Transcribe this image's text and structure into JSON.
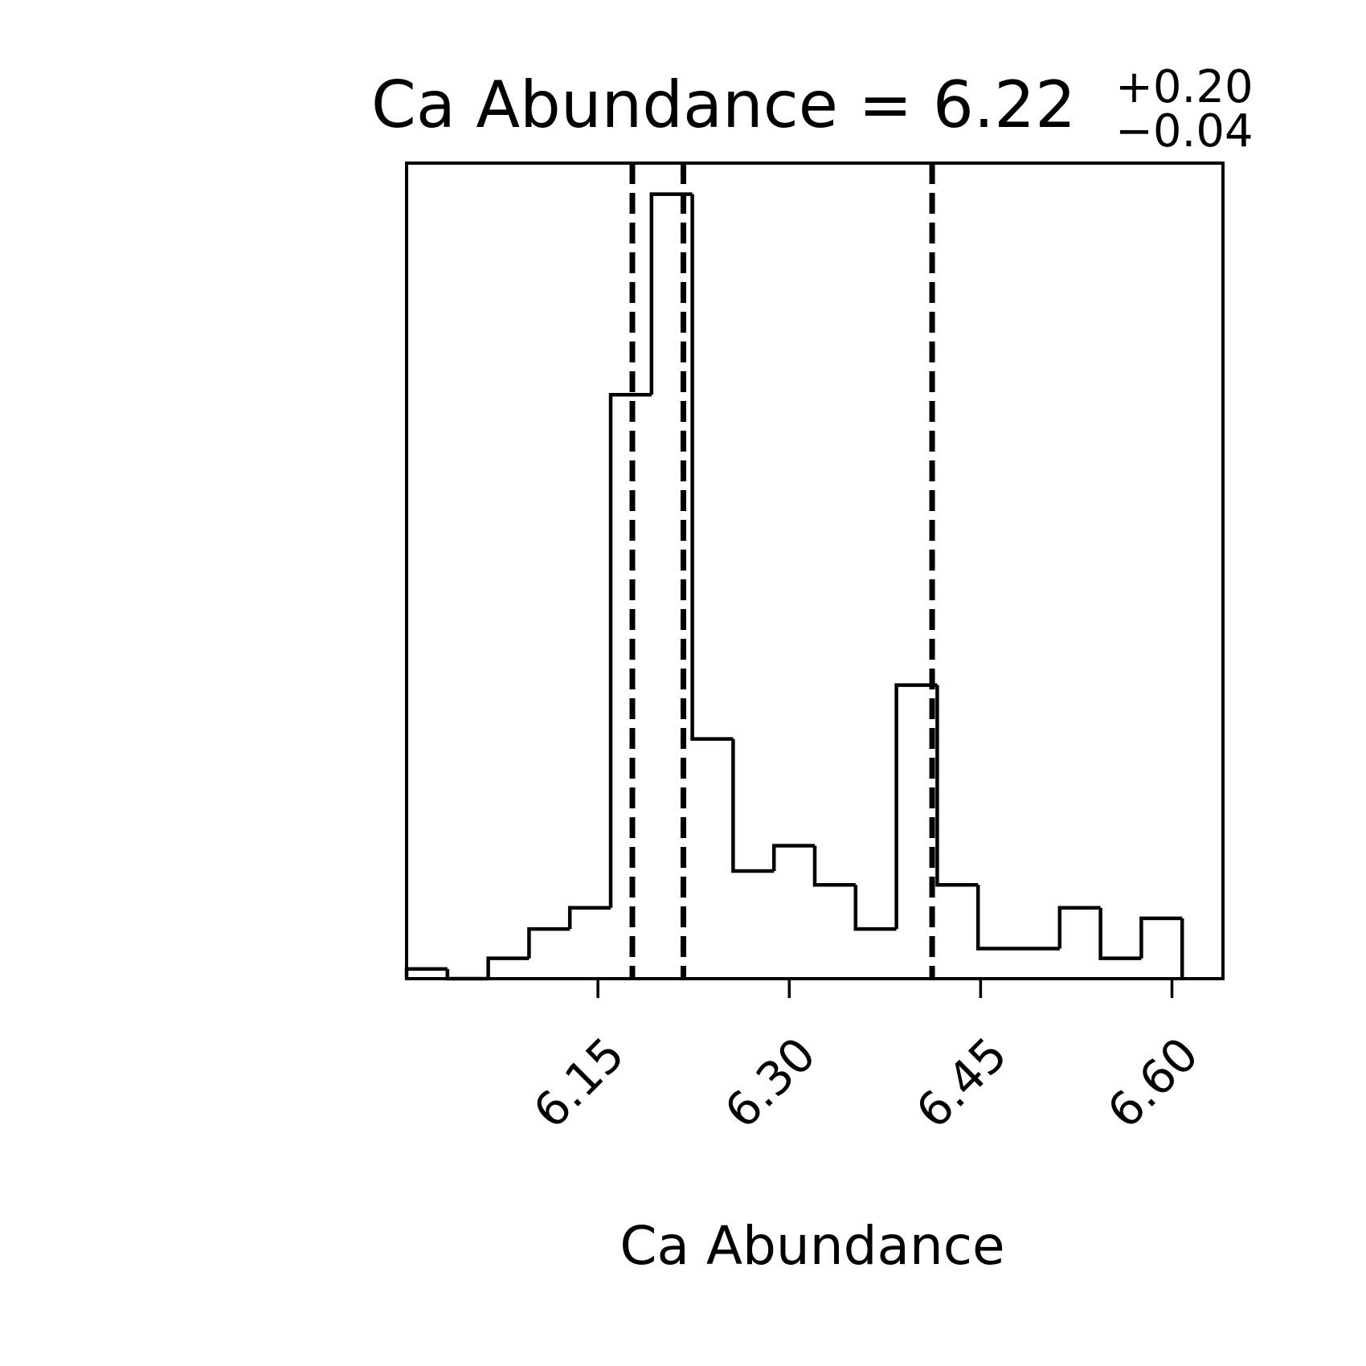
{
  "chart_data": {
    "type": "bar",
    "title": {
      "label": "Ca Abundance",
      "equals": "=",
      "value": "6.22",
      "upper_error": "+0.20",
      "lower_error": "−0.04"
    },
    "xlabel": "Ca Abundance",
    "ylabel": "",
    "grid": false,
    "xlim": [
      6.0,
      6.64
    ],
    "ylim": [
      0,
      1.0
    ],
    "x_ticks": [
      6.15,
      6.3,
      6.45,
      6.6
    ],
    "x_tick_labels": [
      "6.15",
      "6.30",
      "6.45",
      "6.60"
    ],
    "y_ticks_shown": false,
    "bins": {
      "edges": [
        6.0,
        6.032,
        6.064,
        6.096,
        6.128,
        6.16,
        6.192,
        6.224,
        6.256,
        6.288,
        6.32,
        6.352,
        6.384,
        6.416,
        6.448,
        6.48,
        6.512,
        6.544,
        6.576,
        6.608
      ],
      "counts": [
        0.012,
        0.0,
        0.025,
        0.061,
        0.087,
        0.716,
        0.962,
        0.294,
        0.132,
        0.163,
        0.115,
        0.061,
        0.36,
        0.115,
        0.037,
        0.037,
        0.087,
        0.025,
        0.074
      ]
    },
    "quantile_lines": [
      6.177,
      6.217,
      6.412
    ],
    "colors": {
      "line": "#000000",
      "background": "#ffffff"
    }
  }
}
